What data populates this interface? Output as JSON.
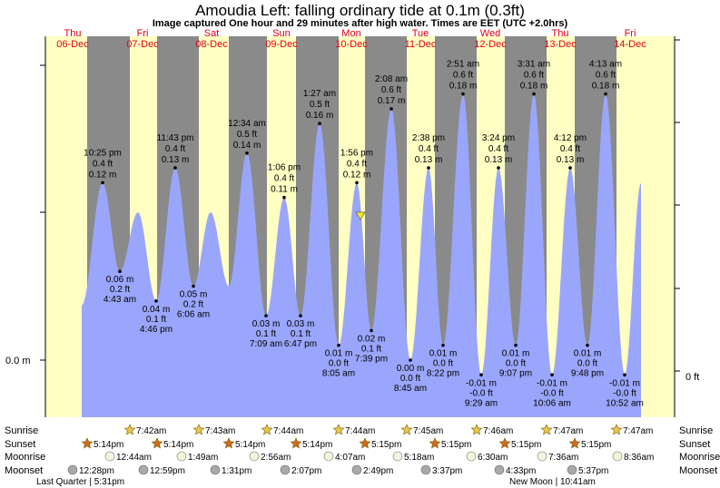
{
  "chart_data": {
    "type": "area",
    "title": "Amoudia Left: falling  ordinary tide at 0.1m (0.3ft)",
    "subtitle": "Image captured One hour and 29 minutes after high water. Times are EET (UTC +2.0hrs)",
    "left_axis_label": "0.0 m",
    "right_axis_label": "0 ft",
    "days": [
      {
        "dow": "Thu",
        "date": "06-Dec"
      },
      {
        "dow": "Fri",
        "date": "07-Dec"
      },
      {
        "dow": "Sat",
        "date": "08-Dec"
      },
      {
        "dow": "Sun",
        "date": "09-Dec"
      },
      {
        "dow": "Mon",
        "date": "10-Dec"
      },
      {
        "dow": "Tue",
        "date": "11-Dec"
      },
      {
        "dow": "Wed",
        "date": "12-Dec"
      },
      {
        "dow": "Thu",
        "date": "13-Dec"
      },
      {
        "dow": "Fri",
        "date": "14-Dec"
      }
    ],
    "tide_labels": [
      {
        "type": "high",
        "time": "10:25 pm",
        "ft": "0.4 ft",
        "m": "0.12 m"
      },
      {
        "type": "low",
        "time": "4:43 am",
        "ft": "0.2 ft",
        "m": "0.06 m"
      },
      {
        "type": "low",
        "time": "4:46 pm",
        "ft": "0.1 ft",
        "m": "0.04 m"
      },
      {
        "type": "high",
        "time": "11:43 pm",
        "ft": "0.4 ft",
        "m": "0.13 m"
      },
      {
        "type": "low",
        "time": "6:06 am",
        "ft": "0.2 ft",
        "m": "0.05 m"
      },
      {
        "type": "high",
        "time": "12:34 am",
        "ft": "0.5 ft",
        "m": "0.14 m"
      },
      {
        "type": "low",
        "time": "7:09 am",
        "ft": "0.1 ft",
        "m": "0.03 m"
      },
      {
        "type": "high",
        "time": "1:06 pm",
        "ft": "0.4 ft",
        "m": "0.11 m"
      },
      {
        "type": "low",
        "time": "6:47 pm",
        "ft": "0.1 ft",
        "m": "0.03 m"
      },
      {
        "type": "high",
        "time": "1:27 am",
        "ft": "0.5 ft",
        "m": "0.16 m"
      },
      {
        "type": "low",
        "time": "8:05 am",
        "ft": "0.0 ft",
        "m": "0.01 m"
      },
      {
        "type": "high",
        "time": "1:56 pm",
        "ft": "0.4 ft",
        "m": "0.12 m"
      },
      {
        "type": "low",
        "time": "7:39 pm",
        "ft": "0.1 ft",
        "m": "0.02 m"
      },
      {
        "type": "high",
        "time": "2:08 am",
        "ft": "0.6 ft",
        "m": "0.17 m"
      },
      {
        "type": "low",
        "time": "8:45 am",
        "ft": "0.0 ft",
        "m": "0.00 m"
      },
      {
        "type": "high",
        "time": "2:38 pm",
        "ft": "0.4 ft",
        "m": "0.13 m"
      },
      {
        "type": "low",
        "time": "8:22 pm",
        "ft": "0.0 ft",
        "m": "0.01 m"
      },
      {
        "type": "high",
        "time": "2:51 am",
        "ft": "0.6 ft",
        "m": "0.18 m"
      },
      {
        "type": "low",
        "time": "9:29 am",
        "ft": "-0.0 ft",
        "m": "-0.01 m"
      },
      {
        "type": "high",
        "time": "3:24 pm",
        "ft": "0.4 ft",
        "m": "0.13 m"
      },
      {
        "type": "low",
        "time": "9:07 pm",
        "ft": "0.0 ft",
        "m": "0.01 m"
      },
      {
        "type": "high",
        "time": "3:31 am",
        "ft": "0.6 ft",
        "m": "0.18 m"
      },
      {
        "type": "low",
        "time": "10:06 am",
        "ft": "-0.0 ft",
        "m": "-0.01 m"
      },
      {
        "type": "high",
        "time": "4:12 pm",
        "ft": "0.4 ft",
        "m": "0.13 m"
      },
      {
        "type": "low",
        "time": "9:48 pm",
        "ft": "0.0 ft",
        "m": "0.01 m"
      },
      {
        "type": "high",
        "time": "4:13 am",
        "ft": "0.6 ft",
        "m": "0.18 m"
      },
      {
        "type": "low",
        "time": "10:52 am",
        "ft": "-0.0 ft",
        "m": "-0.01 m"
      }
    ],
    "row_labels": [
      "Sunrise",
      "Sunset",
      "Moonrise",
      "Moonset"
    ],
    "sunrise": [
      "7:42am",
      "7:43am",
      "7:44am",
      "7:44am",
      "7:45am",
      "7:46am",
      "7:47am",
      "7:47am"
    ],
    "sunset": [
      "5:14pm",
      "5:14pm",
      "5:14pm",
      "5:14pm",
      "5:15pm",
      "5:15pm",
      "5:15pm",
      "5:15pm"
    ],
    "moonrise": [
      "12:44am",
      "1:49am",
      "2:56am",
      "4:07am",
      "5:18am",
      "6:30am",
      "7:36am",
      "8:36am"
    ],
    "moonset": [
      "12:28pm",
      "12:59pm",
      "1:31pm",
      "2:07pm",
      "2:49pm",
      "3:37pm",
      "4:33pm",
      "5:37pm"
    ],
    "phase_notes": [
      "Last Quarter | 5:31pm",
      "New Moon | 10:41am"
    ],
    "colors": {
      "water": "#9aa6fb",
      "day": "#ffffc4",
      "night": "#8a8a8a",
      "day_label": "#e3000f",
      "current_marker": "#f5ec21",
      "sunrise_star": "#e8c84a",
      "sunset_star": "#d2691e",
      "moon_circle": "#f5f5dc",
      "moonset_circle": "#a9a9a9"
    }
  }
}
